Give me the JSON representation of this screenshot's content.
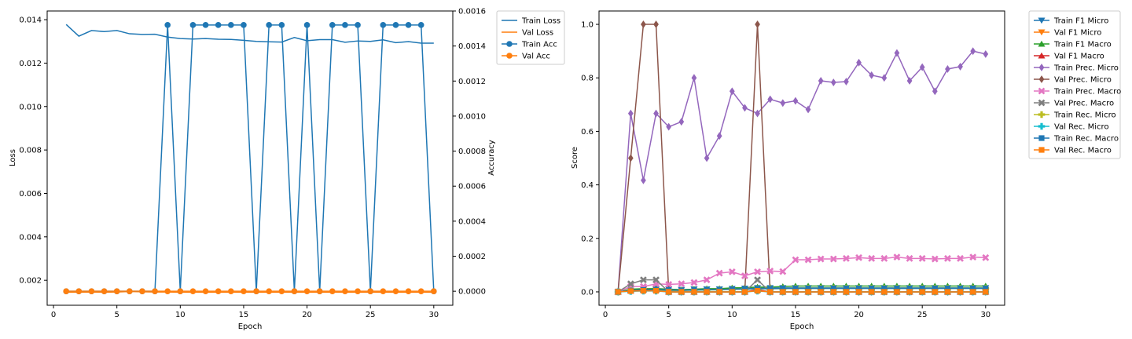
{
  "chart_data": [
    {
      "type": "line",
      "xlabel": "Epoch",
      "ylabel": "Loss",
      "y2label": "Accuracy",
      "xlim": [
        -0.5,
        31.5
      ],
      "ylim": [
        0.00085,
        0.0144
      ],
      "y2lim": [
        -8e-05,
        0.0016
      ],
      "xticks": [
        "0",
        "5",
        "10",
        "15",
        "20",
        "25",
        "30"
      ],
      "yticks": [
        "0.002",
        "0.004",
        "0.006",
        "0.008",
        "0.010",
        "0.012",
        "0.014"
      ],
      "y2ticks": [
        "0.0000",
        "0.0002",
        "0.0004",
        "0.0006",
        "0.0008",
        "0.0010",
        "0.0012",
        "0.0014",
        "0.0016"
      ],
      "legend_position": "outside upper right",
      "x": [
        1,
        2,
        3,
        4,
        5,
        6,
        7,
        8,
        9,
        10,
        11,
        12,
        13,
        14,
        15,
        16,
        17,
        18,
        19,
        20,
        21,
        22,
        23,
        24,
        25,
        26,
        27,
        28,
        29,
        30
      ],
      "series": [
        {
          "name": "Train Loss",
          "axis": "left",
          "color": "#1f77b4",
          "marker": "none",
          "values": [
            0.01378,
            0.01324,
            0.0135,
            0.01345,
            0.0135,
            0.01335,
            0.01332,
            0.01333,
            0.0132,
            0.01313,
            0.01311,
            0.01313,
            0.0131,
            0.01309,
            0.01305,
            0.013,
            0.01298,
            0.01297,
            0.01318,
            0.01303,
            0.01308,
            0.01308,
            0.01296,
            0.01302,
            0.013,
            0.01307,
            0.01294,
            0.01299,
            0.01292,
            0.01292
          ]
        },
        {
          "name": "Val Loss",
          "axis": "left",
          "color": "#ff7f0e",
          "marker": "none",
          "values": [
            0.00145,
            0.00145,
            0.00146,
            0.00145,
            0.00146,
            0.00148,
            0.00147,
            0.00146,
            0.00146,
            0.00145,
            0.00145,
            0.00145,
            0.00145,
            0.00145,
            0.00145,
            0.00145,
            0.00145,
            0.00145,
            0.00145,
            0.00145,
            0.00145,
            0.00145,
            0.00145,
            0.00145,
            0.00145,
            0.00145,
            0.00145,
            0.00145,
            0.00145,
            0.00145
          ]
        },
        {
          "name": "Train Acc",
          "axis": "right",
          "color": "#1f77b4",
          "marker": "o",
          "values": [
            0,
            0,
            0,
            0,
            0,
            0,
            0,
            0,
            0.00152,
            0,
            0.00152,
            0.00152,
            0.00152,
            0.00152,
            0.00152,
            0,
            0.00152,
            0.00152,
            0,
            0.00152,
            0,
            0.00152,
            0.00152,
            0.00152,
            0,
            0.00152,
            0.00152,
            0.00152,
            0.00152,
            0
          ]
        },
        {
          "name": "Val Acc",
          "axis": "right",
          "color": "#ff7f0e",
          "marker": "o",
          "values": [
            0,
            0,
            0,
            0,
            0,
            0,
            0,
            0,
            0,
            0,
            0,
            0,
            0,
            0,
            0,
            0,
            0,
            0,
            0,
            0,
            0,
            0,
            0,
            0,
            0,
            0,
            0,
            0,
            0,
            0
          ]
        }
      ]
    },
    {
      "type": "line",
      "xlabel": "Epoch",
      "ylabel": "Score",
      "xlim": [
        -0.5,
        31.5
      ],
      "ylim": [
        -0.05,
        1.05
      ],
      "xticks": [
        "0",
        "5",
        "10",
        "15",
        "20",
        "25",
        "30"
      ],
      "yticks": [
        "0.0",
        "0.2",
        "0.4",
        "0.6",
        "0.8",
        "1.0"
      ],
      "legend_position": "outside upper right",
      "x": [
        1,
        2,
        3,
        4,
        5,
        6,
        7,
        8,
        9,
        10,
        11,
        12,
        13,
        14,
        15,
        16,
        17,
        18,
        19,
        20,
        21,
        22,
        23,
        24,
        25,
        26,
        27,
        28,
        29,
        30
      ],
      "series": [
        {
          "name": "Train F1 Micro",
          "color": "#1f77b4",
          "marker": "v",
          "values": [
            0,
            0.005,
            0.01,
            0.012,
            0.01,
            0.008,
            0.01,
            0.01,
            0.01,
            0.012,
            0.013,
            0.015,
            0.015,
            0.015,
            0.015,
            0.015,
            0.015,
            0.015,
            0.015,
            0.015,
            0.015,
            0.015,
            0.015,
            0.015,
            0.015,
            0.015,
            0.015,
            0.015,
            0.015,
            0.015
          ]
        },
        {
          "name": "Val F1 Micro",
          "color": "#ff7f0e",
          "marker": "v",
          "values": [
            0,
            0.005,
            0.008,
            0.008,
            0,
            0,
            0,
            0,
            0,
            0,
            0,
            0.008,
            0,
            0,
            0,
            0,
            0,
            0,
            0,
            0,
            0,
            0,
            0,
            0,
            0,
            0,
            0,
            0,
            0,
            0
          ]
        },
        {
          "name": "Train F1 Macro",
          "color": "#2ca02c",
          "marker": "^",
          "values": [
            0,
            0.01,
            0.012,
            0.012,
            0.01,
            0.008,
            0.01,
            0.012,
            0.012,
            0.015,
            0.016,
            0.018,
            0.018,
            0.02,
            0.022,
            0.022,
            0.022,
            0.022,
            0.022,
            0.022,
            0.022,
            0.022,
            0.022,
            0.022,
            0.022,
            0.022,
            0.022,
            0.022,
            0.022,
            0.022
          ]
        },
        {
          "name": "Val F1 Macro",
          "color": "#d62728",
          "marker": "^",
          "values": [
            0,
            0.005,
            0.008,
            0.008,
            0,
            0,
            0,
            0,
            0,
            0,
            0,
            0.008,
            0,
            0,
            0,
            0,
            0,
            0,
            0,
            0,
            0,
            0,
            0,
            0,
            0,
            0,
            0,
            0,
            0,
            0
          ]
        },
        {
          "name": "Train Prec. Micro",
          "color": "#9467bd",
          "marker": "d",
          "values": [
            0,
            0.667,
            0.417,
            0.667,
            0.617,
            0.636,
            0.8,
            0.5,
            0.583,
            0.75,
            0.688,
            0.667,
            0.72,
            0.706,
            0.714,
            0.682,
            0.789,
            0.783,
            0.786,
            0.857,
            0.81,
            0.8,
            0.893,
            0.789,
            0.84,
            0.75,
            0.833,
            0.842,
            0.9,
            0.889
          ]
        },
        {
          "name": "Val Prec. Micro",
          "color": "#8c564b",
          "marker": "d",
          "values": [
            0,
            0.5,
            1.0,
            1.0,
            0,
            0,
            0,
            0,
            0,
            0,
            0,
            1.0,
            0,
            0,
            0,
            0,
            0,
            0,
            0,
            0,
            0,
            0,
            0,
            0,
            0,
            0,
            0,
            0,
            0,
            0
          ]
        },
        {
          "name": "Train Prec. Macro",
          "color": "#e377c2",
          "marker": "X",
          "values": [
            0,
            0.02,
            0.02,
            0.03,
            0.028,
            0.03,
            0.035,
            0.045,
            0.07,
            0.075,
            0.06,
            0.075,
            0.078,
            0.076,
            0.12,
            0.12,
            0.123,
            0.123,
            0.125,
            0.128,
            0.125,
            0.125,
            0.13,
            0.125,
            0.125,
            0.123,
            0.125,
            0.125,
            0.13,
            0.128
          ]
        },
        {
          "name": "Val Prec. Macro",
          "color": "#7f7f7f",
          "marker": "X",
          "values": [
            0,
            0.03,
            0.045,
            0.045,
            0,
            0,
            0,
            0,
            0,
            0,
            0,
            0.045,
            0,
            0,
            0,
            0,
            0,
            0,
            0,
            0,
            0,
            0,
            0,
            0,
            0,
            0,
            0,
            0,
            0,
            0
          ]
        },
        {
          "name": "Train Rec. Micro",
          "color": "#bcbd22",
          "marker": "P",
          "values": [
            0,
            0.004,
            0.005,
            0.006,
            0.005,
            0.005,
            0.006,
            0.007,
            0.008,
            0.009,
            0.01,
            0.011,
            0.012,
            0.012,
            0.013,
            0.013,
            0.013,
            0.013,
            0.013,
            0.013,
            0.013,
            0.013,
            0.013,
            0.013,
            0.013,
            0.013,
            0.013,
            0.013,
            0.013,
            0.013
          ]
        },
        {
          "name": "Val Rec. Micro",
          "color": "#17becf",
          "marker": "P",
          "values": [
            0,
            0.002,
            0.003,
            0.003,
            0,
            0,
            0,
            0,
            0,
            0,
            0,
            0.003,
            0,
            0,
            0,
            0,
            0,
            0,
            0,
            0,
            0,
            0,
            0,
            0,
            0,
            0,
            0,
            0,
            0,
            0
          ]
        },
        {
          "name": "Train Rec. Macro",
          "color": "#1f77b4",
          "marker": "s",
          "values": [
            0,
            0.005,
            0.007,
            0.008,
            0.007,
            0.006,
            0.007,
            0.008,
            0.009,
            0.01,
            0.011,
            0.012,
            0.012,
            0.013,
            0.013,
            0.013,
            0.013,
            0.013,
            0.013,
            0.013,
            0.013,
            0.013,
            0.013,
            0.013,
            0.013,
            0.013,
            0.013,
            0.013,
            0.013,
            0.013
          ]
        },
        {
          "name": "Val Rec. Macro",
          "color": "#ff7f0e",
          "marker": "s",
          "values": [
            0,
            0.003,
            0.004,
            0.004,
            0,
            0,
            0,
            0,
            0,
            0,
            0,
            0.004,
            0,
            0,
            0,
            0,
            0,
            0,
            0,
            0,
            0,
            0,
            0,
            0,
            0,
            0,
            0,
            0,
            0,
            0
          ]
        }
      ]
    }
  ]
}
